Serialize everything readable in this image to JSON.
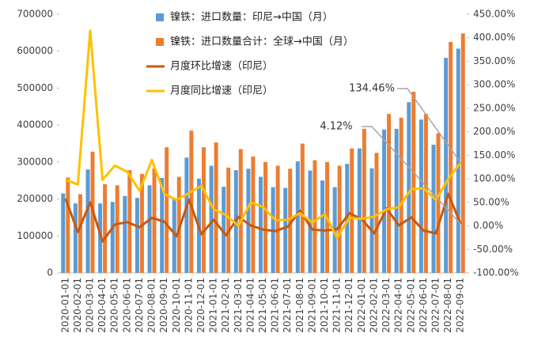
{
  "chart_data": {
    "type": "bar_line",
    "categories": [
      "2020-01-01",
      "2020-02-01",
      "2020-03-01",
      "2020-04-01",
      "2020-05-01",
      "2020-06-01",
      "2020-07-01",
      "2020-08-01",
      "2020-09-01",
      "2020-10-01",
      "2020-11-01",
      "2020-12-01",
      "2021-01-01",
      "2021-02-01",
      "2021-03-01",
      "2021-04-01",
      "2021-05-01",
      "2021-06-01",
      "2021-07-01",
      "2021-08-01",
      "2021-09-01",
      "2021-10-01",
      "2021-11-01",
      "2021-12-01",
      "2022-01-01",
      "2022-02-01",
      "2022-03-01",
      "2022-04-01",
      "2022-05-01",
      "2022-06-01",
      "2022-07-01",
      "2022-08-01",
      "2022-09-01"
    ],
    "series": [
      {
        "name": "镍铁：进口数量：印尼→中国（月）",
        "kind": "bar",
        "color": "#5b9bd5",
        "values": [
          215000,
          188000,
          280000,
          188000,
          192000,
          208000,
          203000,
          237000,
          257000,
          200000,
          312000,
          255000,
          290000,
          233000,
          278000,
          282000,
          260000,
          232000,
          230000,
          302000,
          277000,
          250000,
          232000,
          295000,
          337000,
          283000,
          388000,
          390000,
          462000,
          415000,
          347000,
          582000,
          607000
        ]
      },
      {
        "name": "镍铁：进口数量合计：全球→中国（月）",
        "kind": "bar",
        "color": "#ed7d31",
        "values": [
          258000,
          213000,
          328000,
          240000,
          237000,
          278000,
          268000,
          283000,
          340000,
          260000,
          385000,
          340000,
          353000,
          285000,
          335000,
          315000,
          300000,
          290000,
          282000,
          350000,
          305000,
          300000,
          290000,
          337000,
          390000,
          325000,
          430000,
          420000,
          490000,
          430000,
          378000,
          625000,
          648000
        ]
      },
      {
        "name": "月度环比增速（印尼）",
        "kind": "line",
        "axis": "y2",
        "color": "#c55a11",
        "values": [
          58,
          -13,
          50,
          -33,
          3,
          8,
          -3,
          17,
          9,
          -22,
          56,
          -18,
          13,
          -20,
          19,
          1,
          -8,
          -11,
          -2,
          32,
          -8,
          -10,
          -7,
          27,
          14,
          -16,
          37,
          1,
          18,
          -10,
          -16,
          68,
          4.12
        ]
      },
      {
        "name": "月度同比增速（印尼）",
        "kind": "line",
        "axis": "y2",
        "color": "#ffc000",
        "values": [
          98,
          88,
          415,
          98,
          128,
          115,
          75,
          140,
          68,
          55,
          70,
          85,
          35,
          23,
          0,
          50,
          40,
          12,
          13,
          27,
          7,
          25,
          -25,
          17,
          15,
          20,
          35,
          40,
          78,
          80,
          55,
          100,
          134.46
        ]
      }
    ],
    "ylim": [
      0,
      700000
    ],
    "yticks": [
      0,
      100000,
      200000,
      300000,
      400000,
      500000,
      600000,
      700000
    ],
    "y2lim": [
      -100,
      450
    ],
    "y2ticks": [
      {
        "value": -100,
        "label": "-100.00%"
      },
      {
        "value": -50,
        "label": "-50.00%"
      },
      {
        "value": 0,
        "label": "0.00%"
      },
      {
        "value": 50,
        "label": "50.00%"
      },
      {
        "value": 100,
        "label": "100.00%"
      },
      {
        "value": 150,
        "label": "150.00%"
      },
      {
        "value": 200,
        "label": "200.00%"
      },
      {
        "value": 250,
        "label": "250.00%"
      },
      {
        "value": 300,
        "label": "300.00%"
      },
      {
        "value": 350,
        "label": "350.00%"
      },
      {
        "value": 400,
        "label": "400.00%"
      },
      {
        "value": 450,
        "label": "450.00%"
      }
    ],
    "annotations": [
      "134.46%",
      "4.12%"
    ],
    "grid": false
  }
}
